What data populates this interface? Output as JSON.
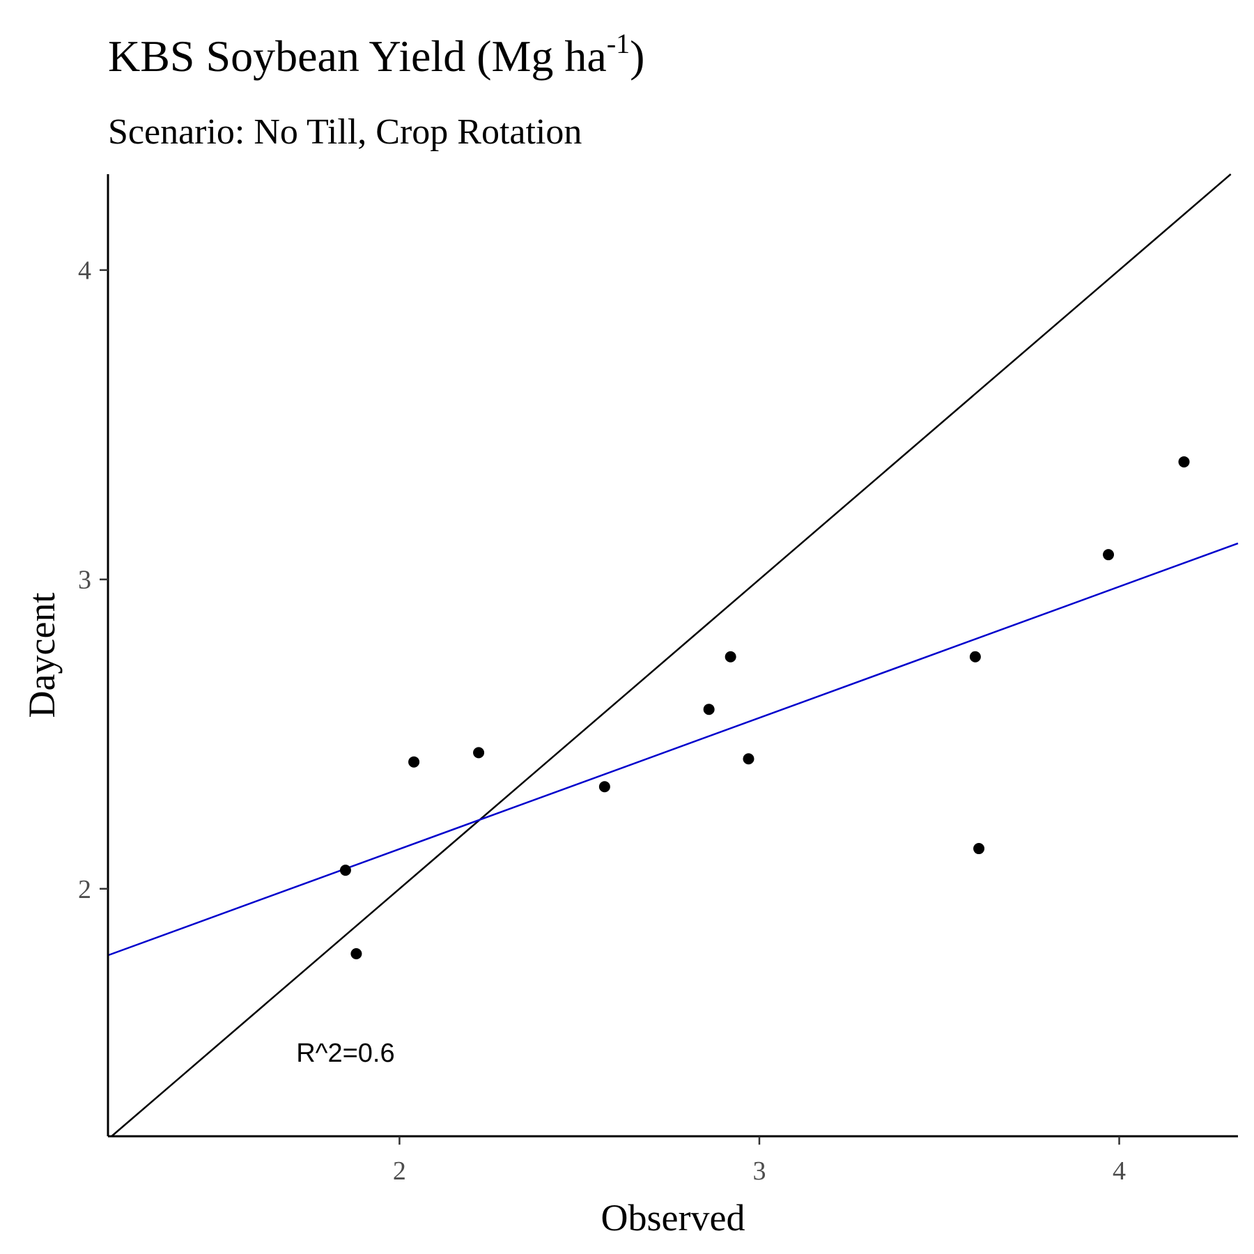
{
  "chart_data": {
    "type": "scatter",
    "title": "KBS Soybean Yield (Mg ha",
    "title_superscript": "-1",
    "title_close": ")",
    "subtitle": "Scenario: No Till, Crop Rotation",
    "xlabel": "Observed",
    "ylabel": "Daycent",
    "xlim": [
      1.19,
      4.33
    ],
    "ylim": [
      1.2,
      4.31
    ],
    "xticks": [
      2,
      3,
      4
    ],
    "yticks": [
      2,
      3,
      4
    ],
    "xtick_labels": [
      "2",
      "3",
      "4"
    ],
    "ytick_labels": [
      "2",
      "3",
      "4"
    ],
    "points": [
      {
        "x": 1.85,
        "y": 2.06
      },
      {
        "x": 1.88,
        "y": 1.79
      },
      {
        "x": 2.04,
        "y": 2.41
      },
      {
        "x": 2.22,
        "y": 2.44
      },
      {
        "x": 2.57,
        "y": 2.33
      },
      {
        "x": 2.86,
        "y": 2.58
      },
      {
        "x": 2.92,
        "y": 2.75
      },
      {
        "x": 2.97,
        "y": 2.42
      },
      {
        "x": 3.6,
        "y": 2.75
      },
      {
        "x": 3.61,
        "y": 2.13
      },
      {
        "x": 3.97,
        "y": 3.08
      },
      {
        "x": 4.18,
        "y": 3.38
      }
    ],
    "lines": [
      {
        "kind": "identity",
        "color": "#000000",
        "slope": 1,
        "intercept": 0
      },
      {
        "kind": "regression",
        "color": "#0000cc",
        "slope": 0.4241,
        "intercept": 1.2803
      }
    ],
    "annotation": {
      "text": "R^2=0.6",
      "x": 1.85,
      "y": 1.47
    },
    "point_color": "#000000",
    "grid": false,
    "legend": "none"
  }
}
